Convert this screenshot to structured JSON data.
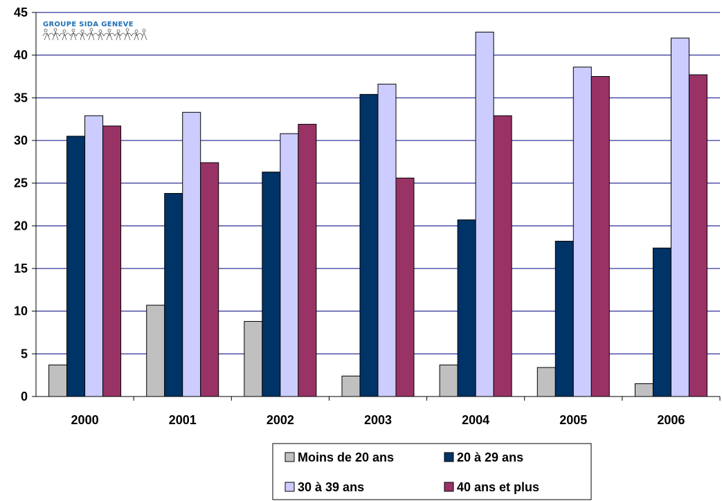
{
  "logo": {
    "text": "GROUPE SIDA GENEVE"
  },
  "chart_data": {
    "type": "bar",
    "categories": [
      "2000",
      "2001",
      "2002",
      "2003",
      "2004",
      "2005",
      "2006"
    ],
    "ylim": [
      0,
      45
    ],
    "yticks": [
      0,
      5,
      10,
      15,
      20,
      25,
      30,
      35,
      40,
      45
    ],
    "grid": true,
    "legend_position": "bottom",
    "series": [
      {
        "name": "Moins de 20 ans",
        "color": "#c0c0c0",
        "values": [
          3.7,
          10.7,
          8.8,
          2.4,
          3.7,
          3.4,
          1.5
        ]
      },
      {
        "name": "20 à 29 ans",
        "color": "#003366",
        "values": [
          30.5,
          23.8,
          26.3,
          35.4,
          20.7,
          18.2,
          17.4
        ]
      },
      {
        "name": "30 à 39 ans",
        "color": "#ccccff",
        "values": [
          32.9,
          33.3,
          30.8,
          36.6,
          42.7,
          38.6,
          42.0
        ]
      },
      {
        "name": "40 ans et plus",
        "color": "#993366",
        "values": [
          31.7,
          27.4,
          31.9,
          25.6,
          32.9,
          37.5,
          37.7
        ]
      }
    ]
  }
}
